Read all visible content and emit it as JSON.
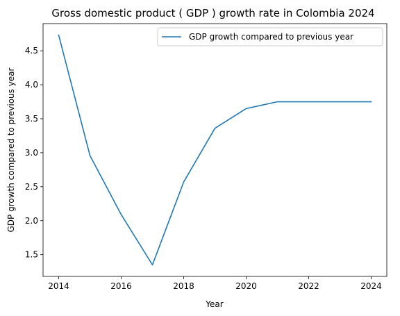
{
  "chart_data": {
    "type": "line",
    "title": "Gross domestic product ( GDP ) growth rate in Colombia 2024",
    "xlabel": "Year",
    "ylabel": "GDP growth compared to previous year",
    "x": [
      2014,
      2015,
      2016,
      2017,
      2018,
      2019,
      2020,
      2021,
      2022,
      2023,
      2024
    ],
    "series": [
      {
        "name": "GDP growth compared to previous year",
        "values": [
          4.73,
          2.96,
          2.09,
          1.35,
          2.57,
          3.36,
          3.65,
          3.75,
          3.75,
          3.75,
          3.75
        ],
        "color": "#1f77b4"
      }
    ],
    "xlim": [
      2013.5,
      2024.5
    ],
    "ylim": [
      1.18,
      4.9
    ],
    "xticks": [
      2014,
      2016,
      2018,
      2020,
      2022,
      2024
    ],
    "yticks": [
      1.5,
      2.0,
      2.5,
      3.0,
      3.5,
      4.0,
      4.5
    ],
    "ytick_labels": [
      "1.5",
      "2.0",
      "2.5",
      "3.0",
      "3.5",
      "4.0",
      "4.5"
    ],
    "legend_position": "top-right",
    "grid": false
  }
}
